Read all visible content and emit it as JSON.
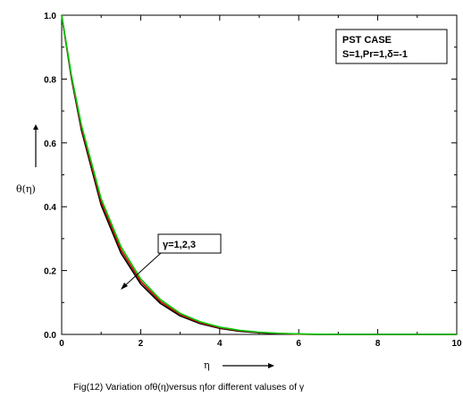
{
  "chart_data": {
    "type": "line",
    "title": "",
    "xlabel": "η",
    "ylabel": "θ(η)",
    "xlim": [
      0,
      10
    ],
    "ylim": [
      0,
      1
    ],
    "x_ticks": [
      0,
      2,
      4,
      6,
      8,
      10
    ],
    "y_ticks": [
      0.0,
      0.2,
      0.4,
      0.6,
      0.8,
      1.0
    ],
    "x_tick_labels": [
      "0",
      "2",
      "4",
      "6",
      "8",
      "10"
    ],
    "y_tick_labels": [
      "0.0",
      "0.2",
      "0.4",
      "0.6",
      "0.8",
      "1.0"
    ],
    "grid": false,
    "legend_box": {
      "line1": "PST CASE",
      "line2": "S=1,Pr=1,δ=-1",
      "placement": "top-right"
    },
    "annotation": {
      "text": "γ=1,2,3"
    },
    "caption": "Fig(12) Variation ofθ(η)versus ηfor different valuses of γ",
    "series": [
      {
        "color": "#000000",
        "x": [
          0,
          0.25,
          0.5,
          1,
          1.5,
          2,
          2.5,
          3,
          3.5,
          4,
          4.5,
          5,
          5.5,
          6,
          6.5,
          7,
          8,
          9,
          10
        ],
        "y": [
          1.0,
          0.8,
          0.64,
          0.405,
          0.255,
          0.158,
          0.097,
          0.058,
          0.034,
          0.019,
          0.01,
          0.005,
          0.002,
          0.0008,
          0.0002,
          0,
          0,
          0,
          0
        ]
      },
      {
        "color": "#cc0000",
        "x": [
          0,
          0.25,
          0.5,
          1,
          1.5,
          2,
          2.5,
          3,
          3.5,
          4,
          4.5,
          5,
          5.5,
          6,
          6.5,
          7,
          8,
          9,
          10
        ],
        "y": [
          1.0,
          0.805,
          0.648,
          0.415,
          0.265,
          0.166,
          0.103,
          0.062,
          0.037,
          0.021,
          0.012,
          0.006,
          0.003,
          0.001,
          0.0003,
          0,
          0,
          0,
          0
        ]
      },
      {
        "color": "#00cc00",
        "x": [
          0,
          0.25,
          0.5,
          1,
          1.5,
          2,
          2.5,
          3,
          3.5,
          4,
          4.5,
          5,
          5.5,
          6,
          6.5,
          7,
          8,
          9,
          10
        ],
        "y": [
          1.0,
          0.81,
          0.656,
          0.425,
          0.275,
          0.174,
          0.109,
          0.066,
          0.04,
          0.023,
          0.013,
          0.007,
          0.0035,
          0.0015,
          0.0005,
          0,
          0,
          0,
          0
        ]
      }
    ]
  }
}
